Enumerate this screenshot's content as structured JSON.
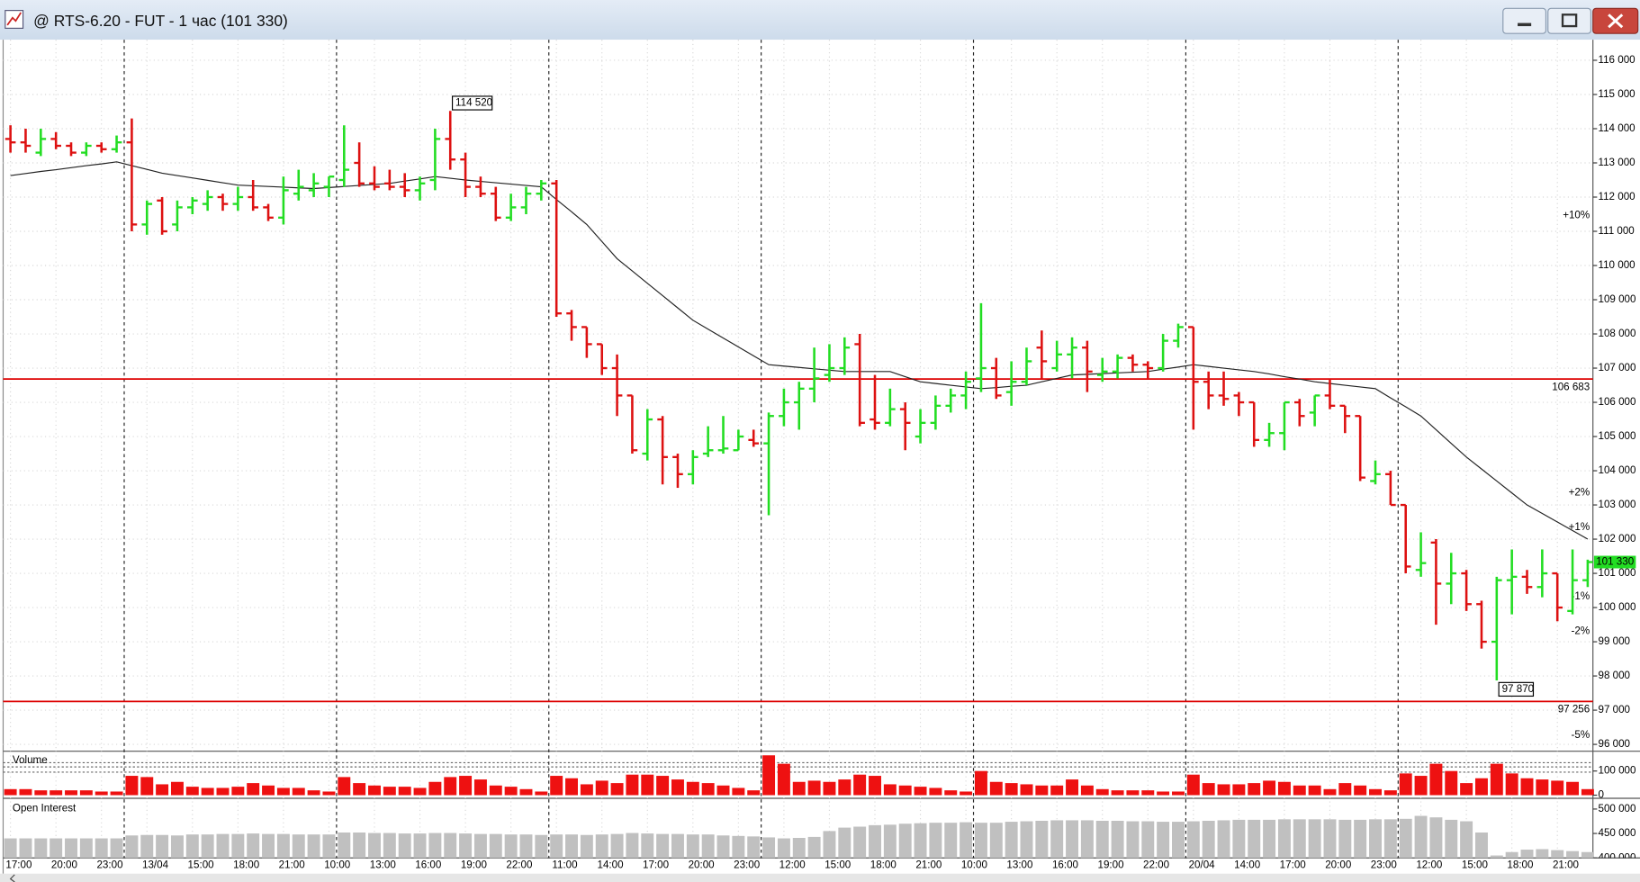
{
  "window": {
    "title": "@ RTS-6.20 - FUT - 1 час (101 330)"
  },
  "chart_data": [
    {
      "type": "ohlc",
      "categories": [
        "17:00",
        null,
        null,
        "20:00",
        null,
        null,
        "23:00",
        null,
        null,
        "13/04",
        null,
        null,
        "15:00",
        null,
        null,
        "18:00",
        null,
        null,
        "21:00",
        null,
        null,
        "10:00",
        null,
        null,
        "13:00",
        null,
        null,
        "16:00",
        null,
        null,
        "19:00",
        null,
        null,
        "22:00",
        null,
        null,
        "11:00",
        null,
        null,
        "14:00",
        null,
        null,
        "17:00",
        null,
        null,
        "20:00",
        null,
        null,
        "23:00",
        null,
        null,
        "12:00",
        null,
        null,
        "15:00",
        null,
        null,
        "18:00",
        null,
        null,
        "21:00",
        null,
        null,
        "10:00",
        null,
        null,
        "13:00",
        null,
        null,
        "16:00",
        null,
        null,
        "19:00",
        null,
        null,
        "22:00",
        null,
        null,
        "20/04",
        null,
        null,
        "14:00",
        null,
        null,
        "17:00",
        null,
        null,
        "20:00",
        null,
        null,
        "23:00",
        null,
        null,
        "12:00",
        null,
        null,
        "15:00",
        null,
        null,
        "18:00",
        null,
        null,
        "21:00",
        null,
        null
      ],
      "ohlc": [
        [
          113700,
          114100,
          113300,
          113600
        ],
        [
          113600,
          114000,
          113300,
          113500
        ],
        [
          113300,
          114000,
          113200,
          113700
        ],
        [
          113700,
          113900,
          113400,
          113500
        ],
        [
          113500,
          113600,
          113200,
          113300
        ],
        [
          113300,
          113600,
          113200,
          113500
        ],
        [
          113500,
          113600,
          113300,
          113400
        ],
        [
          113400,
          113800,
          113300,
          113600
        ],
        [
          113600,
          114300,
          111000,
          111200
        ],
        [
          111200,
          111900,
          110900,
          111800
        ],
        [
          111900,
          112000,
          110900,
          111000
        ],
        [
          111200,
          111900,
          111000,
          111700
        ],
        [
          111700,
          112000,
          111500,
          111900
        ],
        [
          111800,
          112200,
          111600,
          112000
        ],
        [
          112000,
          112100,
          111600,
          111800
        ],
        [
          111800,
          112300,
          111600,
          112000
        ],
        [
          112000,
          112500,
          111600,
          111700
        ],
        [
          111700,
          111800,
          111300,
          111400
        ],
        [
          111400,
          112600,
          111200,
          112200
        ],
        [
          112100,
          112800,
          111900,
          112300
        ],
        [
          112200,
          112700,
          112000,
          112400
        ],
        [
          112300,
          112600,
          112000,
          112600
        ],
        [
          112500,
          114100,
          112300,
          112800
        ],
        [
          113000,
          113600,
          112300,
          112400
        ],
        [
          112400,
          112900,
          112200,
          112300
        ],
        [
          112400,
          112800,
          112200,
          112300
        ],
        [
          112300,
          112700,
          112000,
          112200
        ],
        [
          112200,
          112600,
          111900,
          112400
        ],
        [
          112500,
          114000,
          112200,
          113700
        ],
        [
          113700,
          114520,
          112800,
          113100
        ],
        [
          113100,
          113300,
          112000,
          112300
        ],
        [
          112300,
          112600,
          112000,
          112100
        ],
        [
          112100,
          112300,
          111300,
          111400
        ],
        [
          111400,
          112100,
          111300,
          111700
        ],
        [
          111700,
          112300,
          111500,
          112100
        ],
        [
          112100,
          112500,
          111900,
          112400
        ],
        [
          112400,
          112500,
          108500,
          108600
        ],
        [
          108600,
          108700,
          107800,
          108200
        ],
        [
          108200,
          108200,
          107300,
          107700
        ],
        [
          107700,
          107700,
          106800,
          107000
        ],
        [
          107000,
          107400,
          105600,
          106200
        ],
        [
          106200,
          106200,
          104500,
          104600
        ],
        [
          104500,
          105800,
          104300,
          105500
        ],
        [
          105500,
          105600,
          103600,
          104400
        ],
        [
          104400,
          104500,
          103500,
          103900
        ],
        [
          103900,
          104600,
          103600,
          104400
        ],
        [
          104500,
          105300,
          104400,
          104600
        ],
        [
          104600,
          105600,
          104500,
          104650
        ],
        [
          104600,
          105200,
          104600,
          105000
        ],
        [
          104900,
          105200,
          104700,
          104800
        ],
        [
          104800,
          105700,
          102700,
          105600
        ],
        [
          105600,
          106400,
          105300,
          106000
        ],
        [
          106000,
          106600,
          105200,
          106400
        ],
        [
          106400,
          107600,
          106000,
          106700
        ],
        [
          106800,
          107700,
          106600,
          107000
        ],
        [
          107000,
          107900,
          106800,
          107600
        ],
        [
          107700,
          108000,
          105300,
          105400
        ],
        [
          105500,
          106800,
          105200,
          105400
        ],
        [
          105400,
          106400,
          105300,
          105800
        ],
        [
          105800,
          106000,
          104600,
          105400
        ],
        [
          105000,
          105800,
          104800,
          105400
        ],
        [
          105400,
          106200,
          105200,
          105900
        ],
        [
          105900,
          106400,
          105700,
          106200
        ],
        [
          106200,
          106900,
          105800,
          106600
        ],
        [
          106700,
          108900,
          106300,
          107000
        ],
        [
          107000,
          107300,
          106100,
          106200
        ],
        [
          106300,
          107200,
          105900,
          106600
        ],
        [
          106600,
          107600,
          106500,
          107200
        ],
        [
          107600,
          108100,
          106700,
          107200
        ],
        [
          107000,
          107800,
          106900,
          107400
        ],
        [
          107400,
          107900,
          106700,
          107600
        ],
        [
          107600,
          107800,
          106300,
          106900
        ],
        [
          106800,
          107300,
          106600,
          106900
        ],
        [
          106900,
          107400,
          106700,
          107300
        ],
        [
          107300,
          107400,
          106900,
          107100
        ],
        [
          107100,
          107200,
          106700,
          107000
        ],
        [
          107000,
          108000,
          106900,
          107800
        ],
        [
          107800,
          108300,
          107600,
          108200
        ],
        [
          108200,
          108200,
          105200,
          106600
        ],
        [
          106600,
          106900,
          105800,
          106200
        ],
        [
          106200,
          106900,
          105900,
          106100
        ],
        [
          106200,
          106300,
          105600,
          106000
        ],
        [
          106000,
          106000,
          104700,
          104900
        ],
        [
          104900,
          105400,
          104700,
          105100
        ],
        [
          105100,
          106000,
          104600,
          106000
        ],
        [
          106000,
          106100,
          105300,
          105600
        ],
        [
          105700,
          106200,
          105300,
          106200
        ],
        [
          106200,
          106700,
          105800,
          105900
        ],
        [
          105900,
          105900,
          105100,
          105600
        ],
        [
          105600,
          105600,
          103700,
          103800
        ],
        [
          103700,
          104300,
          103600,
          103900
        ],
        [
          103900,
          104000,
          103000,
          103000
        ],
        [
          103000,
          103000,
          101000,
          101200
        ],
        [
          101100,
          102200,
          100900,
          101300
        ],
        [
          101900,
          102000,
          99500,
          100700
        ],
        [
          100700,
          101600,
          100100,
          101000
        ],
        [
          101000,
          101100,
          99900,
          100100
        ],
        [
          100100,
          100200,
          98800,
          99000
        ],
        [
          99000,
          100900,
          97870,
          100800
        ],
        [
          100800,
          101700,
          99800,
          100900
        ],
        [
          100900,
          101100,
          100400,
          100600
        ],
        [
          100600,
          101700,
          100300,
          101000
        ],
        [
          101000,
          101000,
          99600,
          100000
        ],
        [
          99900,
          101700,
          99800,
          100800
        ],
        [
          100800,
          101400,
          100600,
          101330
        ]
      ],
      "up_color": "#22dd22",
      "down_color": "#dd1111",
      "ma_values": [
        112630,
        112690,
        112750,
        112800,
        112860,
        112920,
        112970,
        113030,
        112920,
        112810,
        112700,
        112630,
        112560,
        112490,
        112420,
        112350,
        112330,
        112310,
        112290,
        112270,
        112250,
        112280,
        112310,
        112340,
        112370,
        112400,
        112470,
        112530,
        112600,
        112550,
        112500,
        112460,
        112420,
        112380,
        112340,
        112300,
        111930,
        111570,
        111200,
        110700,
        110200,
        109840,
        109480,
        109120,
        108760,
        108400,
        108140,
        107880,
        107620,
        107360,
        107100,
        107060,
        107020,
        106980,
        106940,
        106900,
        106900,
        106900,
        106900,
        106750,
        106600,
        106550,
        106500,
        106450,
        106400,
        106430,
        106470,
        106500,
        106600,
        106700,
        106800,
        106820,
        106840,
        106860,
        106880,
        106900,
        106970,
        107030,
        107100,
        107050,
        107000,
        106950,
        106900,
        106830,
        106750,
        106680,
        106600,
        106550,
        106500,
        106450,
        106400,
        106130,
        105870,
        105600,
        105200,
        104800,
        104400,
        104050,
        103700,
        103350,
        103000,
        102750,
        102500,
        102250,
        102000
      ],
      "ma_color": "#222222",
      "session_starts": [
        8,
        22,
        36,
        50,
        64,
        78,
        92
      ],
      "ylim": [
        95800,
        116600
      ],
      "yticks": [
        {
          "value": 96000,
          "label": "96 000"
        },
        {
          "value": 97000,
          "label": "97 000"
        },
        {
          "value": 98000,
          "label": "98 000"
        },
        {
          "value": 99000,
          "label": "99 000"
        },
        {
          "value": 100000,
          "label": "100 000"
        },
        {
          "value": 101000,
          "label": "101 000"
        },
        {
          "value": 102000,
          "label": "102 000"
        },
        {
          "value": 103000,
          "label": "103 000"
        },
        {
          "value": 104000,
          "label": "104 000"
        },
        {
          "value": 105000,
          "label": "105 000"
        },
        {
          "value": 106000,
          "label": "106 000"
        },
        {
          "value": 107000,
          "label": "107 000"
        },
        {
          "value": 108000,
          "label": "108 000"
        },
        {
          "value": 109000,
          "label": "109 000"
        },
        {
          "value": 110000,
          "label": "110 000"
        },
        {
          "value": 111000,
          "label": "111 000"
        },
        {
          "value": 112000,
          "label": "112 000"
        },
        {
          "value": 113000,
          "label": "113 000"
        },
        {
          "value": 114000,
          "label": "114 000"
        },
        {
          "value": 115000,
          "label": "115 000"
        },
        {
          "value": 116000,
          "label": "116 000"
        }
      ],
      "grid": true,
      "levels": [
        {
          "value": 106683,
          "label": "106 683"
        },
        {
          "value": 97256,
          "label": "97 256"
        }
      ],
      "level_color": "#dd0000",
      "percent_marks": [
        {
          "value": 111463,
          "label": "+10%"
        },
        {
          "value": 103357,
          "label": "+2%"
        },
        {
          "value": 102343,
          "label": "+1%"
        },
        {
          "value": 100317,
          "label": "-1%"
        },
        {
          "value": 99303,
          "label": "-2%"
        },
        {
          "value": 96264,
          "label": "-5%"
        }
      ],
      "high_label": {
        "value": 114520,
        "label": "114 520"
      },
      "low_label": {
        "value": 97870,
        "label": "97 870"
      },
      "last_price": {
        "value": 101330,
        "label": "101 330"
      }
    },
    {
      "type": "bar",
      "title": "Volume",
      "color": "#ee1111",
      "values": [
        25000,
        25000,
        20000,
        20000,
        20000,
        20000,
        15000,
        15000,
        80000,
        75000,
        45000,
        55000,
        35000,
        30000,
        30000,
        35000,
        50000,
        40000,
        30000,
        30000,
        20000,
        15000,
        75000,
        50000,
        40000,
        35000,
        35000,
        30000,
        55000,
        75000,
        80000,
        65000,
        40000,
        35000,
        25000,
        15000,
        80000,
        70000,
        45000,
        60000,
        50000,
        85000,
        85000,
        80000,
        65000,
        55000,
        50000,
        40000,
        30000,
        20000,
        165000,
        130000,
        55000,
        60000,
        55000,
        65000,
        85000,
        80000,
        45000,
        40000,
        35000,
        30000,
        20000,
        15000,
        100000,
        55000,
        50000,
        45000,
        40000,
        40000,
        65000,
        40000,
        25000,
        20000,
        20000,
        20000,
        15000,
        15000,
        85000,
        50000,
        45000,
        45000,
        50000,
        60000,
        55000,
        40000,
        40000,
        25000,
        50000,
        40000,
        25000,
        20000,
        90000,
        80000,
        130000,
        100000,
        50000,
        70000,
        130000,
        90000,
        70000,
        65000,
        60000,
        55000,
        25000
      ],
      "ylim": [
        0,
        182000
      ],
      "yticks": [
        {
          "value": 100000,
          "label": "100 000"
        },
        0
      ]
    },
    {
      "type": "bar",
      "title": "Open Interest",
      "color": "#c0c0c0",
      "values": [
        440000,
        440000,
        440000,
        440000,
        440000,
        440000,
        440000,
        440000,
        446000,
        447000,
        447000,
        446000,
        448000,
        448000,
        449000,
        449000,
        450000,
        449000,
        449000,
        448000,
        448000,
        448000,
        452000,
        452000,
        451000,
        451000,
        450000,
        450000,
        451000,
        451000,
        450000,
        449000,
        449000,
        448000,
        448000,
        447000,
        448000,
        448000,
        447000,
        448000,
        449000,
        451000,
        450000,
        449000,
        449000,
        448000,
        448000,
        446000,
        445000,
        444000,
        442000,
        440000,
        441000,
        443000,
        455000,
        462000,
        464000,
        467000,
        468000,
        470000,
        471000,
        472000,
        472000,
        473000,
        472000,
        472000,
        474000,
        475000,
        476000,
        477000,
        477000,
        477000,
        476000,
        476000,
        475000,
        475000,
        474000,
        474000,
        475000,
        476000,
        477000,
        478000,
        478000,
        478000,
        479000,
        479000,
        479000,
        479000,
        478000,
        478000,
        479000,
        479000,
        480000,
        486000,
        483000,
        478000,
        475000,
        452000,
        405000,
        412000,
        417000,
        418000,
        416000,
        414000,
        412000
      ],
      "ylim": [
        400000,
        522000
      ],
      "yticks": [
        {
          "value": 500000,
          "label": "500 000"
        },
        {
          "value": 450000,
          "label": "450 000"
        },
        {
          "value": 400000,
          "label": "400 000"
        }
      ]
    }
  ]
}
